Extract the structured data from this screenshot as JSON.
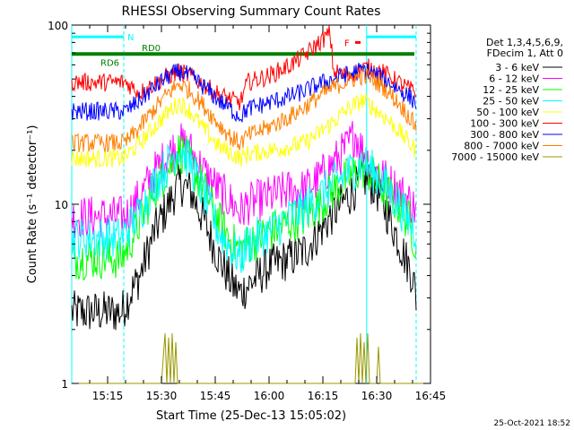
{
  "footer": {
    "timestamp": "25-Oct-2021 18:52"
  },
  "chart_data": {
    "type": "line",
    "title": "RHESSI Observing Summary Count Rates",
    "xlabel": "Start Time (25-Dec-13 15:05:02)",
    "ylabel": "Count Rate (s⁻¹ detector⁻¹)",
    "x_ticks": [
      "15:15",
      "15:30",
      "15:45",
      "16:00",
      "16:15",
      "16:30",
      "16:45"
    ],
    "x_tick_minutes": [
      15,
      30,
      45,
      60,
      75,
      90,
      105
    ],
    "xlim": [
      5.0,
      105.0
    ],
    "y_scale": "log",
    "ylim": [
      1,
      100
    ],
    "y_ticks": [
      1,
      10,
      100
    ],
    "y_tick_labels": [
      "1",
      "10",
      "100"
    ],
    "grid": false,
    "legend_position": "right",
    "legend_header": [
      "Det 1,3,4,5,6,9,",
      "FDecim 1, Att 0"
    ],
    "annotations": {
      "night_label": "N",
      "flare_label": "F",
      "rd_labels": [
        "RD6",
        "RD0"
      ]
    },
    "status_bars": {
      "night": [
        [
          5.0,
          19.5
        ],
        [
          87.2,
          101.0
        ]
      ],
      "saa_rd": [
        [
          5.0,
          22.0
        ],
        [
          22.0,
          52.0
        ],
        [
          52.0,
          97.0
        ],
        [
          97.0,
          100.5
        ]
      ],
      "flare": [
        [
          84.0,
          85.5
        ]
      ]
    },
    "vertical_markers": {
      "solid": [
        5.0,
        87.2
      ],
      "dashed": [
        19.5,
        101.0
      ]
    },
    "series": [
      {
        "name": "3 - 6 keV",
        "color": "#000000",
        "points": [
          [
            5,
            2.5
          ],
          [
            19,
            2.5
          ],
          [
            20,
            2.8
          ],
          [
            24,
            4
          ],
          [
            28,
            7
          ],
          [
            32,
            10
          ],
          [
            35,
            13
          ],
          [
            38,
            12
          ],
          [
            42,
            8
          ],
          [
            46,
            5
          ],
          [
            50,
            3.5
          ],
          [
            52,
            3.2
          ],
          [
            54,
            3.5
          ],
          [
            60,
            4.5
          ],
          [
            66,
            5
          ],
          [
            70,
            5.5
          ],
          [
            74,
            7
          ],
          [
            78,
            9
          ],
          [
            82,
            11
          ],
          [
            85,
            13
          ],
          [
            87,
            14
          ],
          [
            90,
            12
          ],
          [
            94,
            8
          ],
          [
            98,
            5
          ],
          [
            100,
            4
          ],
          [
            101,
            3
          ]
        ]
      },
      {
        "name": "6 - 12 keV",
        "color": "#ff00ff",
        "points": [
          [
            5,
            8.5
          ],
          [
            19,
            8.5
          ],
          [
            20,
            8.5
          ],
          [
            24,
            11
          ],
          [
            28,
            15
          ],
          [
            32,
            19
          ],
          [
            35,
            22
          ],
          [
            38,
            20
          ],
          [
            42,
            15
          ],
          [
            46,
            12
          ],
          [
            50,
            10
          ],
          [
            52,
            9
          ],
          [
            54,
            10
          ],
          [
            60,
            11
          ],
          [
            66,
            12
          ],
          [
            70,
            12
          ],
          [
            74,
            14
          ],
          [
            78,
            17
          ],
          [
            82,
            21
          ],
          [
            84,
            25
          ],
          [
            86,
            20
          ],
          [
            88,
            17
          ],
          [
            92,
            14
          ],
          [
            96,
            12
          ],
          [
            100,
            10
          ],
          [
            101,
            9
          ]
        ]
      },
      {
        "name": "12 - 25 keV",
        "color": "#00ff00",
        "points": [
          [
            5,
            5
          ],
          [
            19,
            5
          ],
          [
            20,
            5.5
          ],
          [
            24,
            8
          ],
          [
            28,
            12
          ],
          [
            32,
            16
          ],
          [
            35,
            20
          ],
          [
            38,
            17
          ],
          [
            42,
            12
          ],
          [
            46,
            8
          ],
          [
            50,
            6
          ],
          [
            52,
            5.5
          ],
          [
            54,
            6
          ],
          [
            60,
            7
          ],
          [
            66,
            8
          ],
          [
            70,
            8.5
          ],
          [
            74,
            10
          ],
          [
            78,
            12
          ],
          [
            82,
            14
          ],
          [
            86,
            16
          ],
          [
            88,
            15
          ],
          [
            92,
            12
          ],
          [
            96,
            10
          ],
          [
            99,
            8
          ],
          [
            101,
            6
          ]
        ]
      },
      {
        "name": "25 - 50 keV",
        "color": "#00ffff",
        "points": [
          [
            5,
            6.5
          ],
          [
            19,
            6.5
          ],
          [
            20,
            7
          ],
          [
            24,
            9
          ],
          [
            28,
            13
          ],
          [
            32,
            17
          ],
          [
            35,
            21
          ],
          [
            38,
            17
          ],
          [
            42,
            11
          ],
          [
            46,
            7
          ],
          [
            50,
            5.5
          ],
          [
            52,
            5
          ],
          [
            54,
            6
          ],
          [
            60,
            7
          ],
          [
            66,
            8.5
          ],
          [
            70,
            9.5
          ],
          [
            74,
            11
          ],
          [
            78,
            13
          ],
          [
            82,
            15
          ],
          [
            86,
            17
          ],
          [
            88,
            16
          ],
          [
            92,
            13
          ],
          [
            96,
            10
          ],
          [
            99,
            8
          ],
          [
            101,
            7
          ]
        ]
      },
      {
        "name": "50 - 100 keV",
        "color": "#ffff00",
        "points": [
          [
            5,
            18
          ],
          [
            19,
            18
          ],
          [
            20,
            18.5
          ],
          [
            24,
            22
          ],
          [
            28,
            27
          ],
          [
            32,
            33
          ],
          [
            35,
            37
          ],
          [
            38,
            33
          ],
          [
            42,
            26
          ],
          [
            46,
            21
          ],
          [
            50,
            19
          ],
          [
            52,
            18
          ],
          [
            54,
            19
          ],
          [
            60,
            20
          ],
          [
            66,
            21
          ],
          [
            70,
            22
          ],
          [
            74,
            25
          ],
          [
            78,
            29
          ],
          [
            82,
            34
          ],
          [
            86,
            38
          ],
          [
            88,
            36
          ],
          [
            92,
            31
          ],
          [
            96,
            26
          ],
          [
            99,
            22
          ],
          [
            101,
            20
          ]
        ]
      },
      {
        "name": "100 - 300 keV",
        "color": "#ff0000",
        "points": [
          [
            5,
            48
          ],
          [
            19,
            48
          ],
          [
            20,
            48
          ],
          [
            24,
            42
          ],
          [
            28,
            47
          ],
          [
            32,
            52
          ],
          [
            35,
            55
          ],
          [
            38,
            52
          ],
          [
            42,
            46
          ],
          [
            46,
            41
          ],
          [
            50,
            38
          ],
          [
            52,
            37
          ],
          [
            54,
            48
          ],
          [
            60,
            52
          ],
          [
            66,
            60
          ],
          [
            70,
            68
          ],
          [
            74,
            80
          ],
          [
            77,
            90
          ],
          [
            78,
            55
          ],
          [
            82,
            52
          ],
          [
            86,
            57
          ],
          [
            88,
            58
          ],
          [
            92,
            54
          ],
          [
            96,
            48
          ],
          [
            99,
            44
          ],
          [
            101,
            42
          ]
        ]
      },
      {
        "name": "300 - 800 keV",
        "color": "#0000ff",
        "points": [
          [
            5,
            33
          ],
          [
            19,
            33
          ],
          [
            20,
            33
          ],
          [
            24,
            38
          ],
          [
            28,
            45
          ],
          [
            32,
            52
          ],
          [
            35,
            55
          ],
          [
            38,
            52
          ],
          [
            42,
            45
          ],
          [
            46,
            38
          ],
          [
            50,
            33
          ],
          [
            52,
            31
          ],
          [
            54,
            34
          ],
          [
            60,
            37
          ],
          [
            66,
            40
          ],
          [
            70,
            43
          ],
          [
            74,
            47
          ],
          [
            78,
            50
          ],
          [
            82,
            53
          ],
          [
            86,
            56
          ],
          [
            88,
            55
          ],
          [
            92,
            50
          ],
          [
            96,
            44
          ],
          [
            99,
            40
          ],
          [
            101,
            37
          ]
        ]
      },
      {
        "name": "800 - 7000 keV",
        "color": "#ff8000",
        "points": [
          [
            5,
            22
          ],
          [
            19,
            22
          ],
          [
            20,
            22
          ],
          [
            24,
            27
          ],
          [
            28,
            34
          ],
          [
            32,
            42
          ],
          [
            35,
            47
          ],
          [
            38,
            43
          ],
          [
            42,
            35
          ],
          [
            46,
            28
          ],
          [
            50,
            23
          ],
          [
            52,
            22
          ],
          [
            54,
            24
          ],
          [
            60,
            27
          ],
          [
            66,
            31
          ],
          [
            70,
            35
          ],
          [
            74,
            40
          ],
          [
            78,
            45
          ],
          [
            82,
            49
          ],
          [
            86,
            52
          ],
          [
            88,
            51
          ],
          [
            92,
            45
          ],
          [
            96,
            37
          ],
          [
            99,
            31
          ],
          [
            101,
            27
          ]
        ]
      },
      {
        "name": "7000 - 15000 keV",
        "color": "#999900",
        "points": [
          [
            5,
            1
          ],
          [
            30,
            1
          ],
          [
            31,
            1.9
          ],
          [
            31.5,
            1
          ],
          [
            32,
            1.8
          ],
          [
            32.5,
            1
          ],
          [
            33,
            1.9
          ],
          [
            33.5,
            1
          ],
          [
            34,
            1.7
          ],
          [
            34.5,
            1
          ],
          [
            36,
            1
          ],
          [
            84,
            1
          ],
          [
            84.5,
            1.8
          ],
          [
            85,
            1
          ],
          [
            85.5,
            1.9
          ],
          [
            86,
            1
          ],
          [
            86.5,
            1.7
          ],
          [
            87,
            1
          ],
          [
            87.5,
            1.9
          ],
          [
            88,
            1
          ],
          [
            90,
            1
          ],
          [
            90.5,
            1.6
          ],
          [
            91,
            1
          ],
          [
            105,
            1
          ]
        ]
      }
    ]
  }
}
